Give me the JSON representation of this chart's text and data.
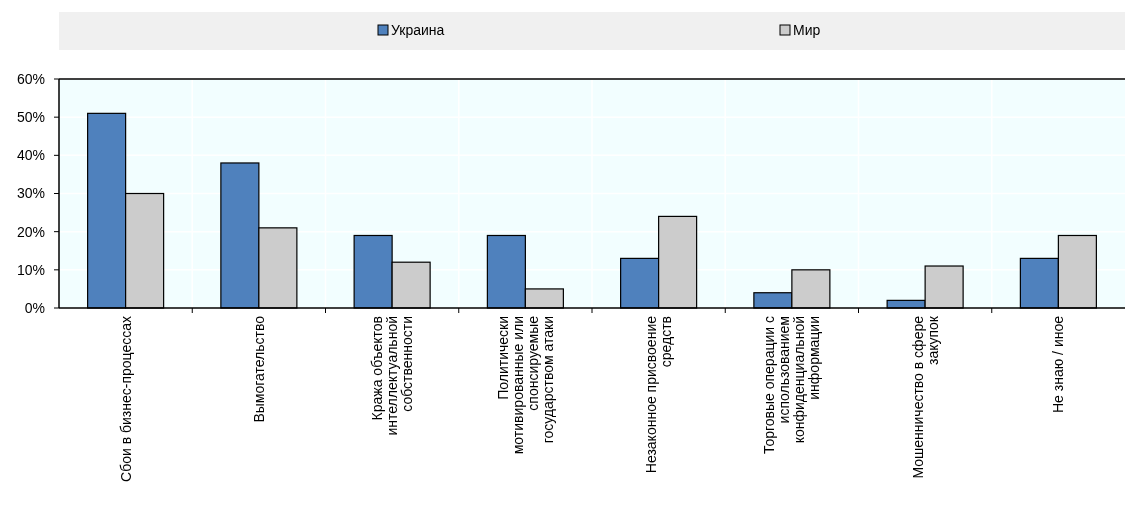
{
  "chart_data": {
    "type": "bar",
    "categories": [
      "Сбои в бизнес-процессах",
      "Вымогательство",
      "Кража объектов интеллектуальной собственности",
      "Политически мотивированные или спонсируемые государством атаки",
      "Незаконное присвоение средств",
      "Торговые операции с использованием конфиденциальной информации",
      "Мошенничество в сфере закупок",
      "Не знаю / иное"
    ],
    "series": [
      {
        "name": "Украина",
        "color": "#4f81bd",
        "values": [
          51,
          38,
          19,
          19,
          13,
          4,
          2,
          13
        ]
      },
      {
        "name": "Мир",
        "color": "#cccccc",
        "values": [
          30,
          21,
          12,
          5,
          24,
          10,
          11,
          19
        ]
      }
    ],
    "ylim": [
      0,
      60
    ],
    "yticks": [
      {
        "value": 0,
        "label": "0%"
      },
      {
        "value": 10,
        "label": "10%"
      },
      {
        "value": 20,
        "label": "20%"
      },
      {
        "value": 30,
        "label": "30%"
      },
      {
        "value": 40,
        "label": "40%"
      },
      {
        "value": 50,
        "label": "50%"
      },
      {
        "value": 60,
        "label": "60%"
      }
    ],
    "grid": true,
    "legend": "top"
  }
}
